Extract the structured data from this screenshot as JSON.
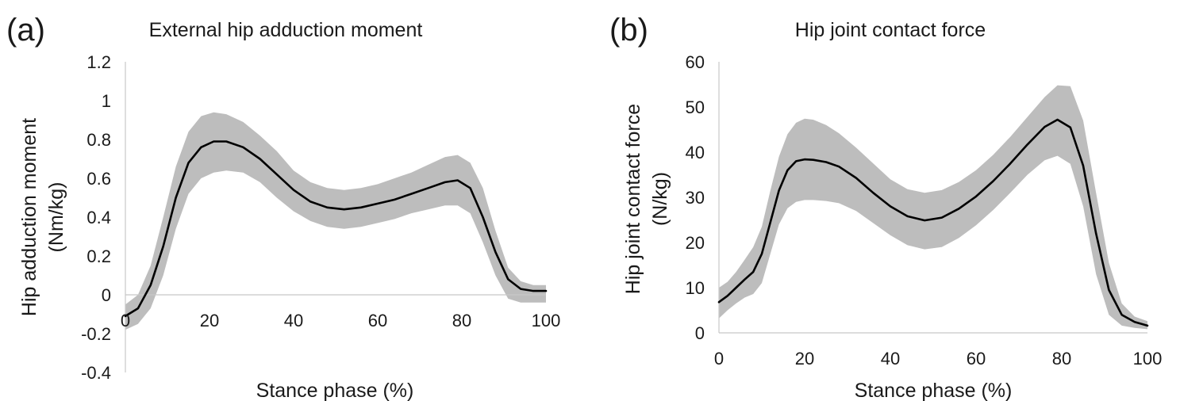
{
  "chart_data": [
    {
      "type": "line",
      "panel_label": "(a)",
      "title": "External hip adduction moment",
      "xlabel": "Stance phase (%)",
      "ylabel": [
        "Hip adduction moment",
        "(Nm/kg)"
      ],
      "xlim": [
        0,
        100
      ],
      "ylim": [
        -0.4,
        1.2
      ],
      "xticks": [
        0,
        20,
        40,
        60,
        80,
        100
      ],
      "yticks": [
        -0.4,
        -0.2,
        0,
        0.2,
        0.4,
        0.6,
        0.8,
        1,
        1.2
      ],
      "xtick_labels": [
        "0",
        "20",
        "40",
        "60",
        "80",
        "100"
      ],
      "ytick_labels": [
        "-0.4",
        "-0.2",
        "0",
        "0.2",
        "0.4",
        "0.6",
        "0.8",
        "1",
        "1.2"
      ],
      "grid": false,
      "band_color": "#bdbdbd",
      "line_color": "#000000",
      "series": [
        {
          "kind": "mean",
          "x": [
            0,
            3,
            6,
            9,
            12,
            15,
            18,
            21,
            24,
            28,
            32,
            36,
            40,
            44,
            48,
            52,
            56,
            60,
            64,
            68,
            72,
            76,
            79,
            82,
            85,
            88,
            91,
            94,
            97,
            100
          ],
          "y": [
            -0.11,
            -0.07,
            0.05,
            0.25,
            0.5,
            0.68,
            0.76,
            0.79,
            0.79,
            0.76,
            0.7,
            0.62,
            0.54,
            0.48,
            0.45,
            0.44,
            0.45,
            0.47,
            0.49,
            0.52,
            0.55,
            0.58,
            0.59,
            0.55,
            0.4,
            0.22,
            0.08,
            0.03,
            0.02,
            0.02
          ]
        },
        {
          "kind": "upper",
          "x": [
            0,
            3,
            6,
            9,
            12,
            15,
            18,
            21,
            24,
            28,
            32,
            36,
            40,
            44,
            48,
            52,
            56,
            60,
            64,
            68,
            72,
            76,
            79,
            82,
            85,
            88,
            91,
            94,
            97,
            100
          ],
          "y": [
            -0.05,
            0.0,
            0.15,
            0.4,
            0.66,
            0.84,
            0.92,
            0.94,
            0.93,
            0.89,
            0.82,
            0.74,
            0.64,
            0.58,
            0.55,
            0.54,
            0.55,
            0.57,
            0.6,
            0.63,
            0.67,
            0.71,
            0.72,
            0.68,
            0.55,
            0.33,
            0.14,
            0.07,
            0.05,
            0.05
          ]
        },
        {
          "kind": "lower",
          "x": [
            0,
            3,
            6,
            9,
            12,
            15,
            18,
            21,
            24,
            28,
            32,
            36,
            40,
            44,
            48,
            52,
            56,
            60,
            64,
            68,
            72,
            76,
            79,
            82,
            85,
            88,
            91,
            94,
            97,
            100
          ],
          "y": [
            -0.18,
            -0.15,
            -0.07,
            0.1,
            0.34,
            0.52,
            0.6,
            0.63,
            0.64,
            0.63,
            0.58,
            0.5,
            0.43,
            0.38,
            0.35,
            0.34,
            0.35,
            0.37,
            0.39,
            0.42,
            0.44,
            0.46,
            0.46,
            0.42,
            0.27,
            0.1,
            -0.02,
            -0.04,
            -0.04,
            -0.04
          ]
        }
      ]
    },
    {
      "type": "line",
      "panel_label": "(b)",
      "title": "Hip joint contact force",
      "xlabel": "Stance phase (%)",
      "ylabel": [
        "Hip joint contact force",
        "(N/kg)"
      ],
      "xlim": [
        0,
        100
      ],
      "ylim": [
        0,
        60
      ],
      "xticks": [
        0,
        20,
        40,
        60,
        80,
        100
      ],
      "yticks": [
        0,
        10,
        20,
        30,
        40,
        50,
        60
      ],
      "xtick_labels": [
        "0",
        "20",
        "40",
        "60",
        "80",
        "100"
      ],
      "ytick_labels": [
        "0",
        "10",
        "20",
        "30",
        "40",
        "50",
        "60"
      ],
      "grid": false,
      "band_color": "#bdbdbd",
      "line_color": "#000000",
      "series": [
        {
          "kind": "mean",
          "x": [
            0,
            2,
            4,
            6,
            8,
            10,
            12,
            14,
            16,
            18,
            20,
            22,
            25,
            28,
            32,
            36,
            40,
            44,
            48,
            52,
            56,
            60,
            64,
            68,
            72,
            76,
            79,
            82,
            85,
            88,
            91,
            94,
            97,
            100
          ],
          "y": [
            6.8,
            8.2,
            10.0,
            11.8,
            13.5,
            17.5,
            24.5,
            31.5,
            36.0,
            38.0,
            38.4,
            38.3,
            37.8,
            36.8,
            34.3,
            31.0,
            28.0,
            25.8,
            24.9,
            25.5,
            27.5,
            30.2,
            33.6,
            37.5,
            41.7,
            45.6,
            47.2,
            45.5,
            37.0,
            22.0,
            9.5,
            4.0,
            2.4,
            1.6
          ]
        },
        {
          "kind": "upper",
          "x": [
            0,
            2,
            4,
            6,
            8,
            10,
            12,
            14,
            16,
            18,
            20,
            22,
            25,
            28,
            32,
            36,
            40,
            44,
            48,
            52,
            56,
            60,
            64,
            68,
            72,
            76,
            79,
            82,
            85,
            88,
            91,
            94,
            97,
            100
          ],
          "y": [
            10.0,
            11.3,
            13.5,
            16.2,
            19.0,
            23.5,
            31.5,
            39.0,
            44.0,
            46.5,
            47.4,
            47.2,
            46.0,
            44.2,
            41.0,
            37.5,
            34.0,
            31.8,
            31.0,
            31.6,
            33.4,
            36.0,
            39.4,
            43.4,
            47.8,
            52.2,
            54.8,
            54.6,
            47.0,
            31.0,
            15.5,
            6.5,
            3.6,
            2.6
          ]
        },
        {
          "kind": "lower",
          "x": [
            0,
            2,
            4,
            6,
            8,
            10,
            12,
            14,
            16,
            18,
            20,
            22,
            25,
            28,
            32,
            36,
            40,
            44,
            48,
            52,
            56,
            60,
            64,
            68,
            72,
            76,
            79,
            82,
            85,
            88,
            91,
            94,
            97,
            100
          ],
          "y": [
            3.2,
            5.0,
            6.5,
            7.8,
            8.6,
            11.0,
            17.5,
            24.0,
            27.6,
            29.0,
            29.4,
            29.4,
            29.2,
            28.7,
            27.0,
            24.3,
            21.6,
            19.4,
            18.5,
            19.0,
            21.0,
            23.8,
            27.2,
            31.0,
            35.0,
            38.2,
            39.2,
            37.4,
            28.0,
            13.0,
            4.0,
            1.6,
            1.1,
            0.8
          ]
        }
      ]
    }
  ]
}
